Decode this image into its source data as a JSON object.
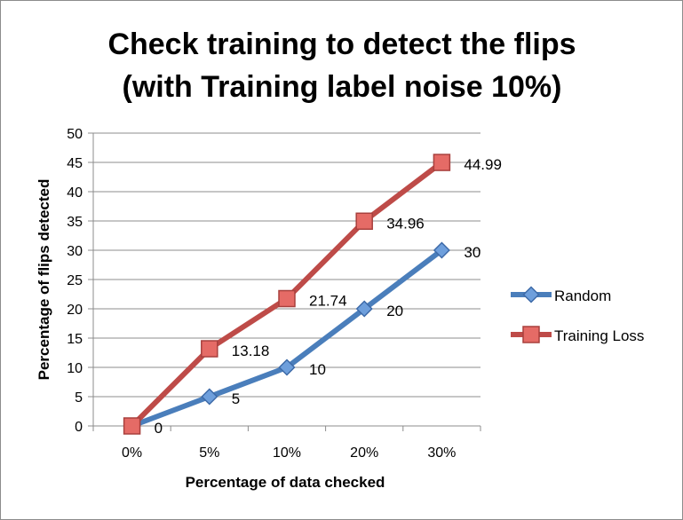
{
  "chart_data": {
    "type": "line",
    "title_lines": [
      "Check training to detect the flips",
      "(with Training label noise 10%)"
    ],
    "xlabel": "Percentage of data checked",
    "ylabel": "Percentage of flips detected",
    "categories": [
      "0%",
      "5%",
      "10%",
      "20%",
      "30%"
    ],
    "ylim": [
      0,
      50
    ],
    "ytick_step": 5,
    "grid": "horizontal",
    "legend_position": "right",
    "series": [
      {
        "name": "Random",
        "values": [
          0,
          5,
          10,
          20,
          30
        ],
        "labels": [
          "0",
          "5",
          "10",
          "20",
          "30"
        ],
        "color": "#4a7ebb",
        "marker": "diamond"
      },
      {
        "name": "Training Loss",
        "values": [
          0,
          13.18,
          21.74,
          34.96,
          44.99
        ],
        "labels": [
          "",
          "13.18",
          "21.74",
          "34.96",
          "44.99"
        ],
        "color": "#be4b48",
        "marker": "square"
      }
    ]
  }
}
